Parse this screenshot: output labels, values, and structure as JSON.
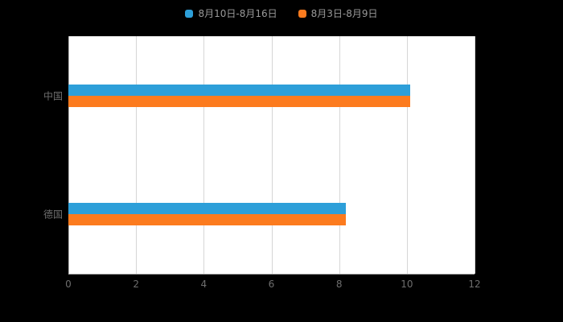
{
  "page": {
    "background": "#000000",
    "plot_background": "#ffffff"
  },
  "legend": {
    "position": "top-center",
    "items": [
      {
        "label": "8月10日-8月16日",
        "color": "#2d9fd9"
      },
      {
        "label": "8月3日-8月9日",
        "color": "#fc7b1e"
      }
    ]
  },
  "chart_data": {
    "type": "bar",
    "orientation": "horizontal",
    "title": "",
    "xlabel": "",
    "ylabel": "",
    "categories": [
      "中国",
      "德国"
    ],
    "series": [
      {
        "name": "8月10日-8月16日",
        "color": "#2d9fd9",
        "values": [
          10.1,
          8.2
        ]
      },
      {
        "name": "8月3日-8月9日",
        "color": "#fc7b1e",
        "values": [
          10.1,
          8.2
        ]
      }
    ],
    "xlim": [
      0,
      12
    ],
    "xticks": [
      0,
      2,
      4,
      6,
      8,
      10,
      12
    ],
    "grid": true,
    "gridline_color": "#d6d6d6",
    "legend_position": "top"
  }
}
